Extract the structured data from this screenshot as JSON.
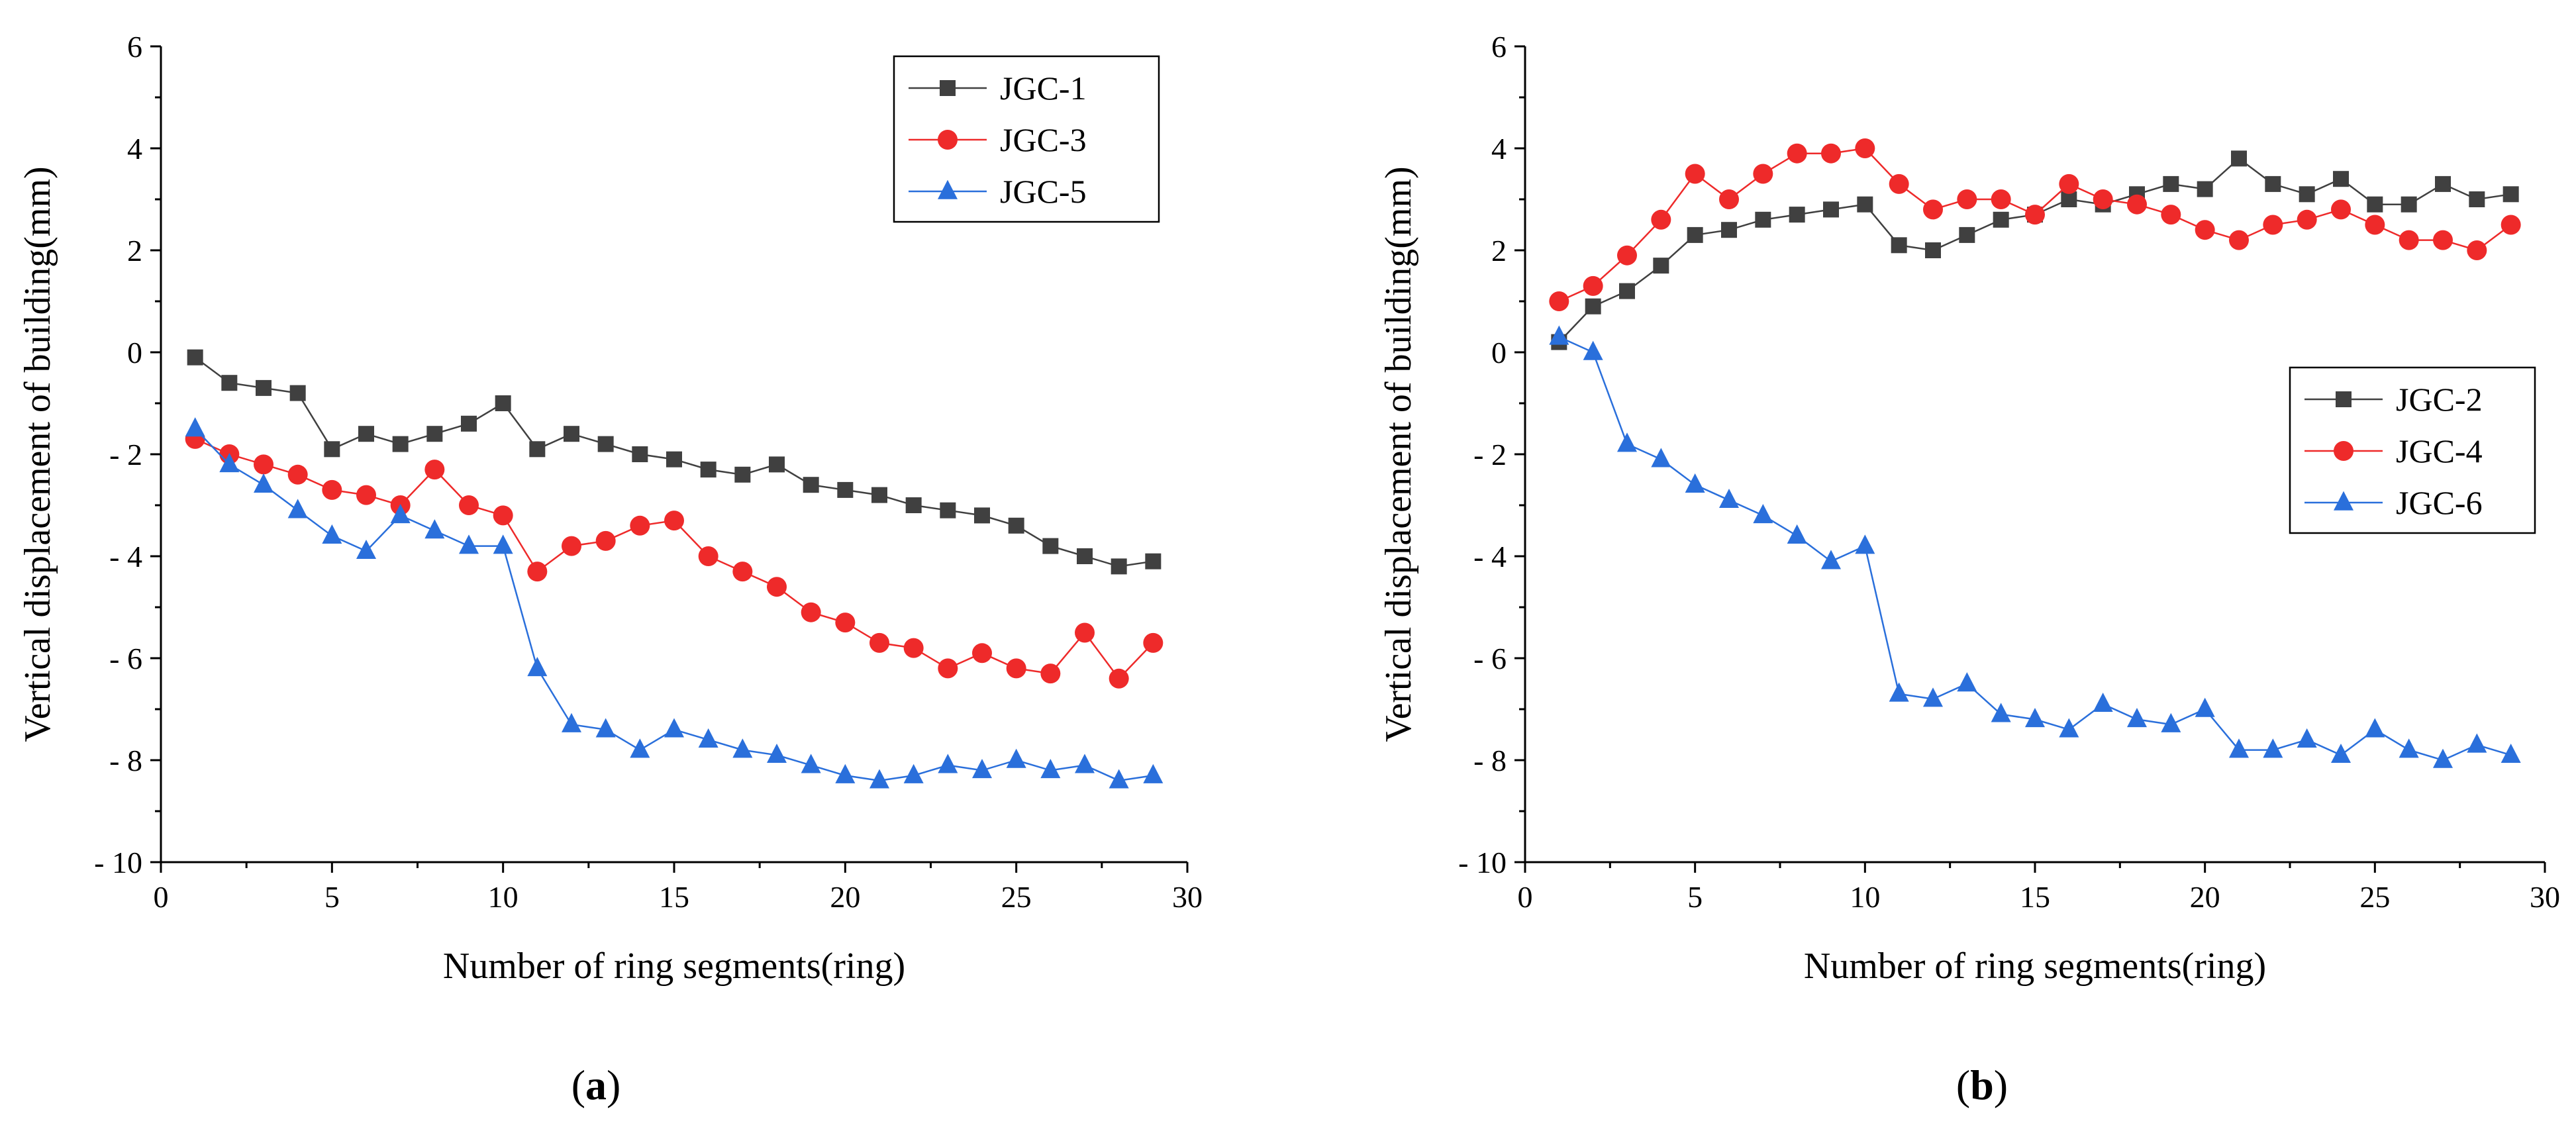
{
  "figure": {
    "panels": [
      {
        "label_open": "(",
        "label_letter": "a",
        "label_close": ")"
      },
      {
        "label_open": "(",
        "label_letter": "b",
        "label_close": ")"
      }
    ]
  },
  "chart_data": [
    {
      "type": "line",
      "panel": "a",
      "title": "",
      "xlabel": "Number of ring segments(ring)",
      "ylabel": "Vertical displacement of building(mm)",
      "xlim": [
        0,
        30
      ],
      "ylim": [
        -10,
        6
      ],
      "xticks": [
        0,
        5,
        10,
        15,
        20,
        25,
        30
      ],
      "yticks": [
        6,
        4,
        2,
        0,
        -2,
        -4,
        -6,
        -8,
        -10
      ],
      "ytick_labels": [
        "6",
        "4",
        "2",
        "0",
        "- 2",
        "- 4",
        "- 6",
        "- 8",
        "- 10"
      ],
      "xtick_labels": [
        "0",
        "5",
        "10",
        "15",
        "20",
        "25",
        "30"
      ],
      "grid": false,
      "legend_position": "top-right",
      "x": [
        1,
        2,
        3,
        4,
        5,
        6,
        7,
        8,
        9,
        10,
        11,
        12,
        13,
        14,
        15,
        16,
        17,
        18,
        19,
        20,
        21,
        22,
        23,
        24,
        25,
        26,
        27,
        28,
        29
      ],
      "series": [
        {
          "name": "JGC-1",
          "color": "#404040",
          "marker": "square",
          "values": [
            -0.1,
            -0.6,
            -0.7,
            -0.8,
            -1.9,
            -1.6,
            -1.8,
            -1.6,
            -1.4,
            -1.0,
            -1.9,
            -1.6,
            -1.8,
            -2.0,
            -2.1,
            -2.3,
            -2.4,
            -2.2,
            -2.6,
            -2.7,
            -2.8,
            -3.0,
            -3.1,
            -3.2,
            -3.4,
            -3.8,
            -4.0,
            -4.2,
            -4.1
          ]
        },
        {
          "name": "JGC-3",
          "color": "#ee2a2a",
          "marker": "circle",
          "values": [
            -1.7,
            -2.0,
            -2.2,
            -2.4,
            -2.7,
            -2.8,
            -3.0,
            -2.3,
            -3.0,
            -3.2,
            -4.3,
            -3.8,
            -3.7,
            -3.4,
            -3.3,
            -4.0,
            -4.3,
            -4.6,
            -5.1,
            -5.3,
            -5.7,
            -5.8,
            -6.2,
            -5.9,
            -6.2,
            -6.3,
            -5.5,
            -6.4,
            -5.7
          ]
        },
        {
          "name": "JGC-5",
          "color": "#2a6fdb",
          "marker": "triangle",
          "values": [
            -1.5,
            -2.2,
            -2.6,
            -3.1,
            -3.6,
            -3.9,
            -3.2,
            -3.5,
            -3.8,
            -3.8,
            -6.2,
            -7.3,
            -7.4,
            -7.8,
            -7.4,
            -7.6,
            -7.8,
            -7.9,
            -8.1,
            -8.3,
            -8.4,
            -8.3,
            -8.1,
            -8.2,
            -8.0,
            -8.2,
            -8.1,
            -8.4,
            -8.3
          ]
        }
      ]
    },
    {
      "type": "line",
      "panel": "b",
      "title": "",
      "xlabel": "Number of ring segments(ring)",
      "ylabel": "Vertical displacement of building(mm)",
      "xlim": [
        0,
        30
      ],
      "ylim": [
        -10,
        6
      ],
      "xticks": [
        0,
        5,
        10,
        15,
        20,
        25,
        30
      ],
      "yticks": [
        6,
        4,
        2,
        0,
        -2,
        -4,
        -6,
        -8,
        -10
      ],
      "ytick_labels": [
        "6",
        "4",
        "2",
        "0",
        "- 2",
        "- 4",
        "- 6",
        "- 8",
        "- 10"
      ],
      "xtick_labels": [
        "0",
        "5",
        "10",
        "15",
        "20",
        "25",
        "30"
      ],
      "grid": false,
      "legend_position": "center-right",
      "x": [
        1,
        2,
        3,
        4,
        5,
        6,
        7,
        8,
        9,
        10,
        11,
        12,
        13,
        14,
        15,
        16,
        17,
        18,
        19,
        20,
        21,
        22,
        23,
        24,
        25,
        26,
        27,
        28,
        29
      ],
      "series": [
        {
          "name": "JGC-2",
          "color": "#404040",
          "marker": "square",
          "values": [
            0.2,
            0.9,
            1.2,
            1.7,
            2.3,
            2.4,
            2.6,
            2.7,
            2.8,
            2.9,
            2.1,
            2.0,
            2.3,
            2.6,
            2.7,
            3.0,
            2.9,
            3.1,
            3.3,
            3.2,
            3.8,
            3.3,
            3.1,
            3.4,
            2.9,
            2.9,
            3.3,
            3.0,
            3.1
          ]
        },
        {
          "name": "JGC-4",
          "color": "#ee2a2a",
          "marker": "circle",
          "values": [
            1.0,
            1.3,
            1.9,
            2.6,
            3.5,
            3.0,
            3.5,
            3.9,
            3.9,
            4.0,
            3.3,
            2.8,
            3.0,
            3.0,
            2.7,
            3.3,
            3.0,
            2.9,
            2.7,
            2.4,
            2.2,
            2.5,
            2.6,
            2.8,
            2.5,
            2.2,
            2.2,
            2.0,
            2.5
          ]
        },
        {
          "name": "JGC-6",
          "color": "#2a6fdb",
          "marker": "triangle",
          "values": [
            0.3,
            0.0,
            -1.8,
            -2.1,
            -2.6,
            -2.9,
            -3.2,
            -3.6,
            -4.1,
            -3.8,
            -6.7,
            -6.8,
            -6.5,
            -7.1,
            -7.2,
            -7.4,
            -6.9,
            -7.2,
            -7.3,
            -7.0,
            -7.8,
            -7.8,
            -7.6,
            -7.9,
            -7.4,
            -7.8,
            -8.0,
            -7.7,
            -7.9
          ]
        }
      ]
    }
  ]
}
